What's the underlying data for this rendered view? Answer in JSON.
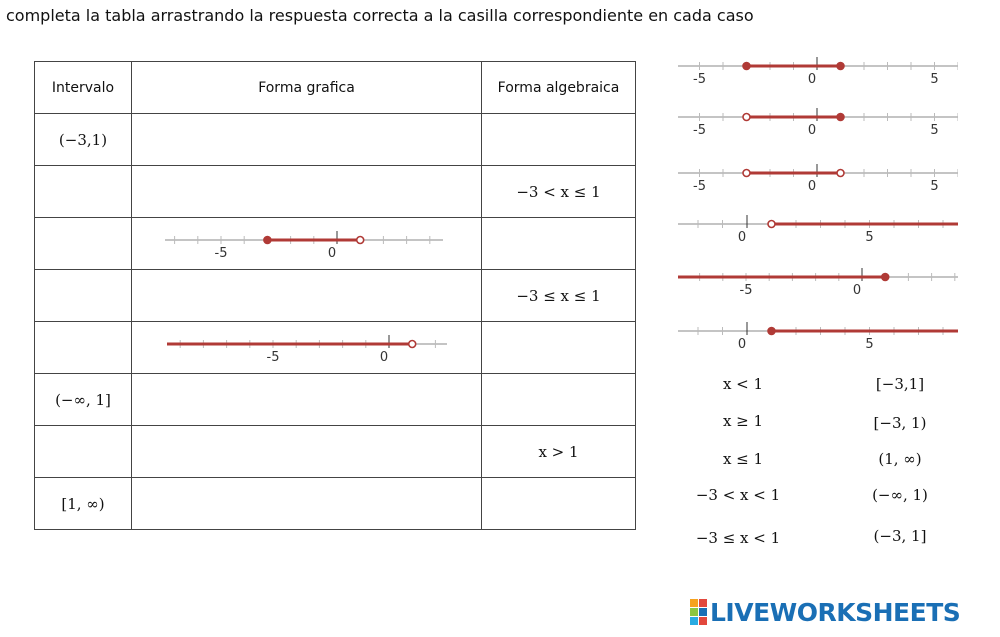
{
  "instruction": "completa la tabla arrastrando la respuesta correcta a la casilla correspondiente en cada caso",
  "table": {
    "headers": [
      "Intervalo",
      "Forma grafica",
      "Forma algebraica"
    ],
    "rows": [
      {
        "intervalo": "(−3,1)",
        "algebraica": ""
      },
      {
        "intervalo": "",
        "algebraica": "−3 < x ≤ 1"
      },
      {
        "intervalo": "",
        "algebraica": ""
      },
      {
        "intervalo": "",
        "algebraica": "−3 ≤ x ≤ 1"
      },
      {
        "intervalo": "",
        "algebraica": ""
      },
      {
        "intervalo": "(−∞, 1]",
        "algebraica": ""
      },
      {
        "intervalo": "",
        "algebraica": "x > 1"
      },
      {
        "intervalo": "[1, ∞)",
        "algebraica": ""
      }
    ],
    "graphs": [
      {
        "row": 2,
        "from": -3,
        "to": 1,
        "from_closed": true,
        "to_closed": false,
        "tick_labels": [
          "-5",
          "0",
          "5"
        ]
      },
      {
        "row": 4,
        "from": "-inf",
        "to": 1,
        "from_closed": false,
        "to_closed": false,
        "tick_labels": [
          "-5",
          "0"
        ]
      }
    ]
  },
  "graph_options": [
    {
      "from": -3,
      "to": 1,
      "from_closed": true,
      "to_closed": true,
      "tick_labels": [
        "-5",
        "0",
        "5"
      ]
    },
    {
      "from": -3,
      "to": 1,
      "from_closed": false,
      "to_closed": true,
      "tick_labels": [
        "-5",
        "0",
        "5"
      ]
    },
    {
      "from": -3,
      "to": 1,
      "from_closed": false,
      "to_closed": false,
      "tick_labels": [
        "-5",
        "0",
        "5"
      ]
    },
    {
      "from": 1,
      "to": "inf",
      "from_closed": false,
      "to_closed": false,
      "tick_labels": [
        "0",
        "5"
      ]
    },
    {
      "from": "-inf",
      "to": 1,
      "from_closed": false,
      "to_closed": true,
      "tick_labels": [
        "-5",
        "0"
      ]
    },
    {
      "from": 1,
      "to": "inf",
      "from_closed": true,
      "to_closed": false,
      "tick_labels": [
        "0",
        "5"
      ]
    }
  ],
  "options_left": [
    "x < 1",
    "x ≥ 1",
    "x ≤ 1",
    "−3 < x < 1",
    "−3 ≤ x < 1"
  ],
  "options_right": [
    "[−3,1]",
    "[−3, 1)",
    "(1, ∞)",
    "(−∞, 1)",
    "(−3, 1]"
  ],
  "brand": "LIVEWORKSHEETS",
  "colors": {
    "interval": "#b03a36",
    "axis": "#888888",
    "brand": "#1a6fb5"
  }
}
